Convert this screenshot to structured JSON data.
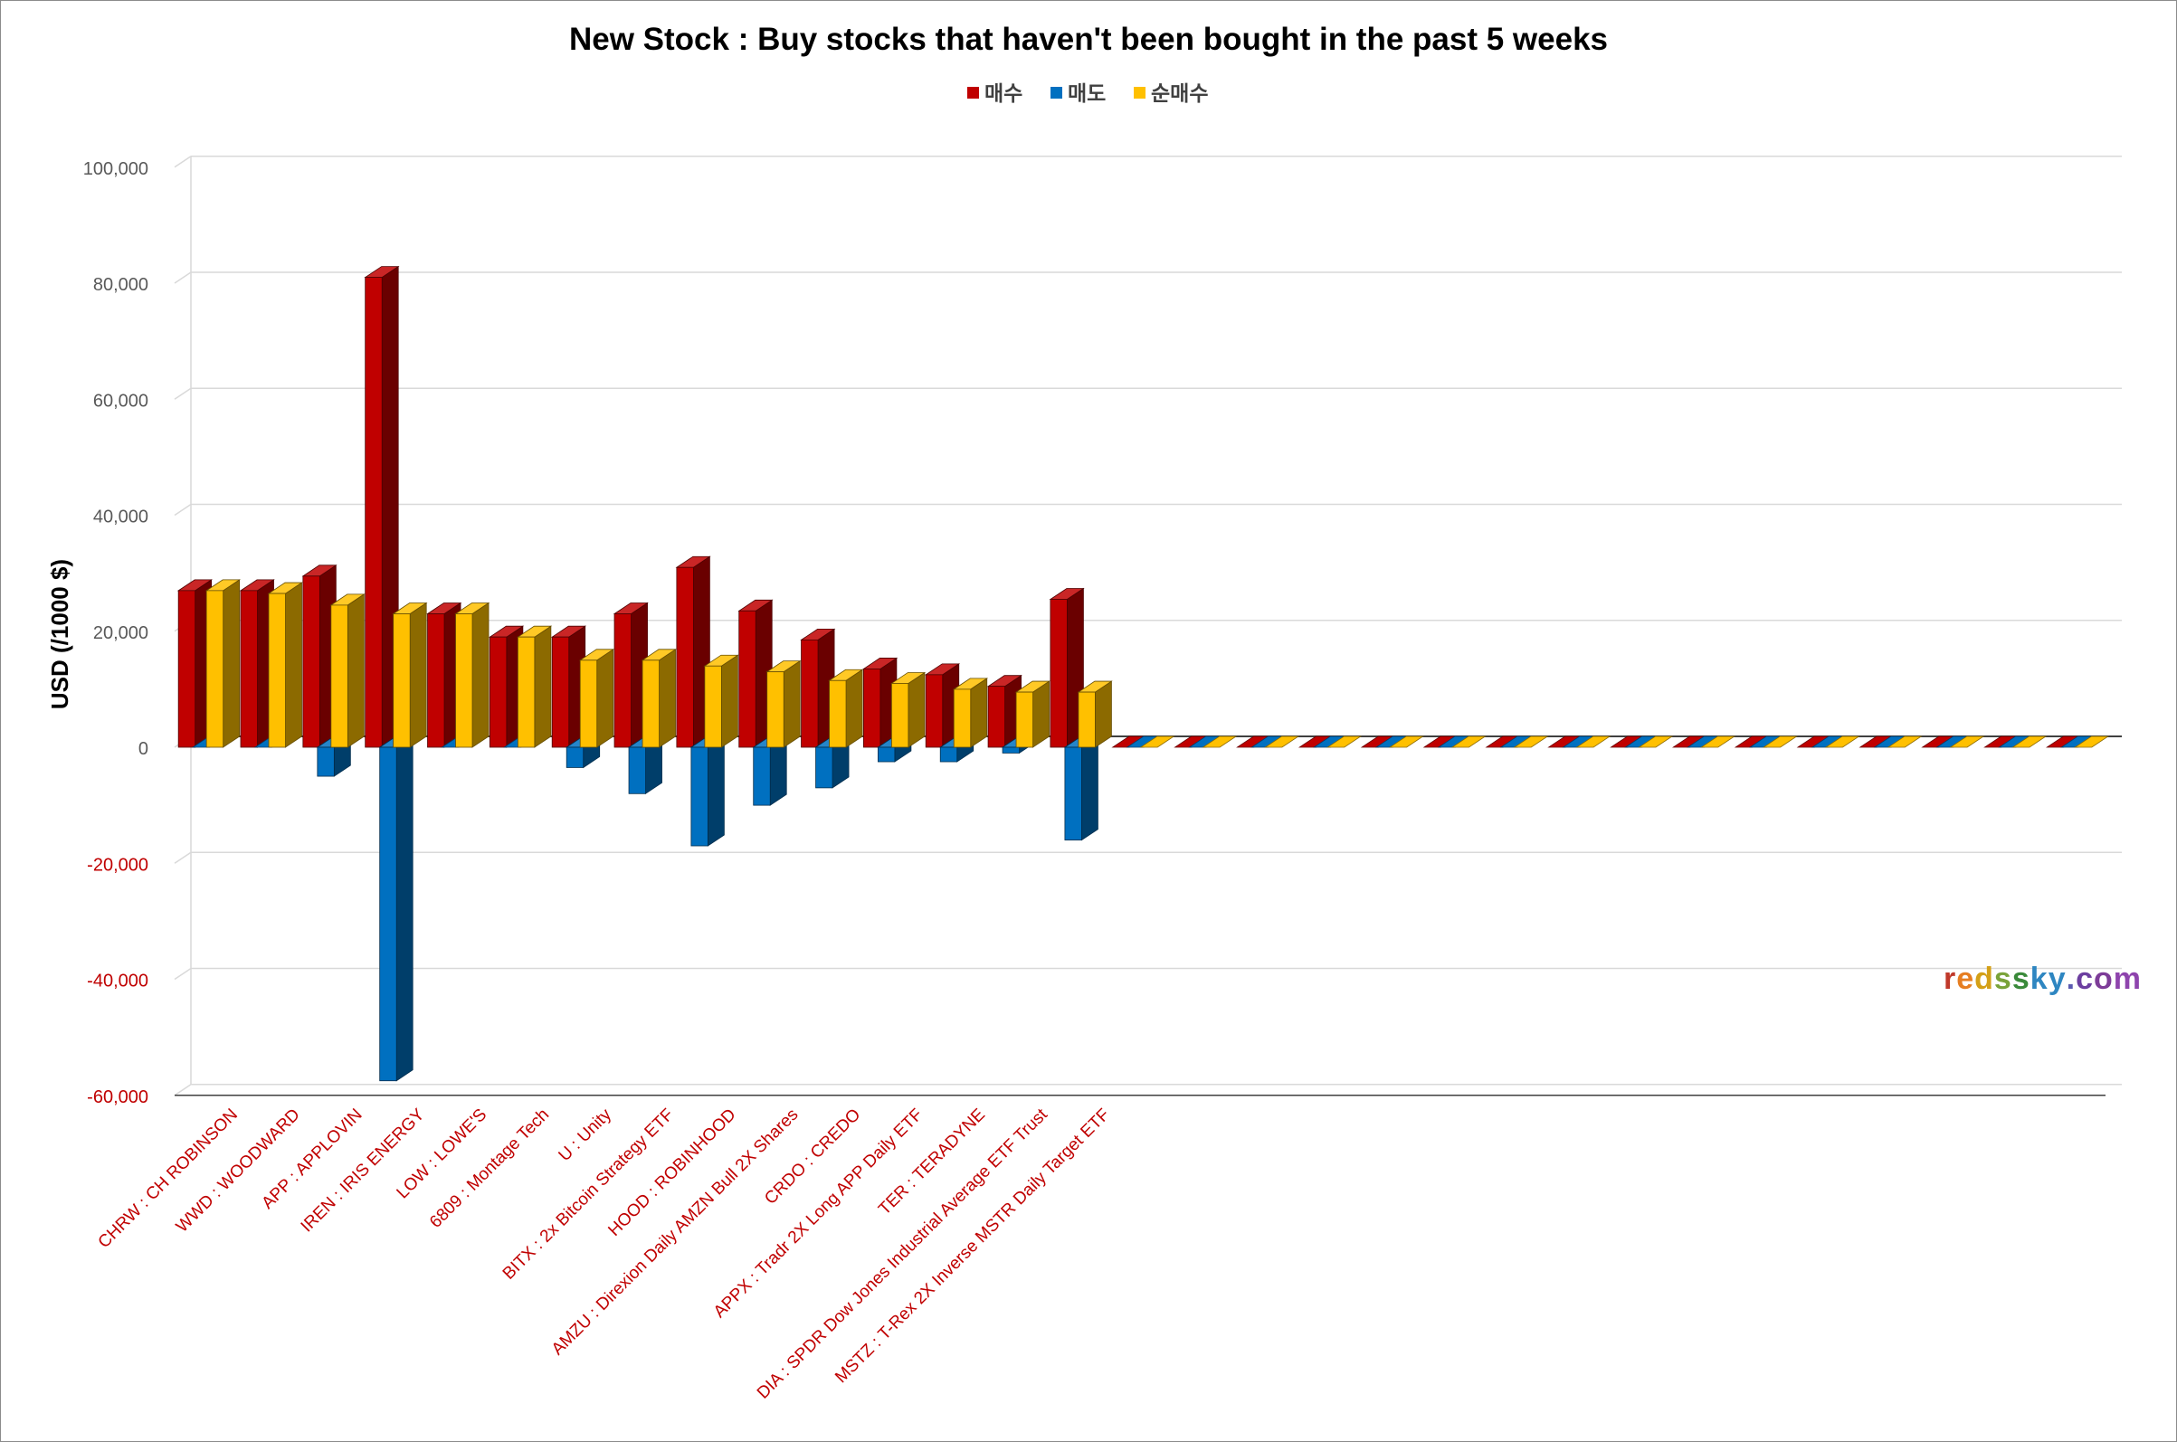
{
  "chart_data": {
    "type": "bar",
    "title": "New Stock : Buy stocks that haven't been bought in the past 5 weeks",
    "ylabel": "USD (/1000 $)",
    "xlabel": "",
    "ylim": [
      -60000,
      100000
    ],
    "yticks": [
      -60000,
      -40000,
      -20000,
      0,
      20000,
      40000,
      60000,
      80000,
      100000
    ],
    "ytick_labels": [
      "-60,000",
      "-40,000",
      "-20,000",
      "0",
      "20,000",
      "40,000",
      "60,000",
      "80,000",
      "100,000"
    ],
    "grid": true,
    "legend_position": "top",
    "categories": [
      "CHRW : CH ROBINSON",
      "WWD : WOODWARD",
      "APP : APPLOVIN",
      "IREN : IRIS ENERGY",
      "LOW : LOWE'S",
      "6809 : Montage Tech",
      "U : Unity",
      "BITX : 2x Bitcoin Strategy ETF",
      "HOOD : ROBINHOOD",
      "AMZU : Direxion Daily AMZN Bull 2X Shares",
      "CRDO : CREDO",
      "APPX : Tradr 2X Long APP Daily ETF",
      "TER : TERADYNE",
      "DIA : SPDR Dow Jones Industrial Average ETF Trust",
      "MSTZ : T-Rex 2X Inverse MSTR Daily Target ETF",
      "",
      "",
      "",
      "",
      "",
      "",
      "",
      "",
      "",
      "",
      "",
      "",
      "",
      "",
      "",
      ""
    ],
    "series": [
      {
        "name": "매수",
        "color": "#c00000",
        "values": [
          27000,
          27000,
          29500,
          81000,
          23000,
          19000,
          19000,
          23000,
          31000,
          23500,
          18500,
          13500,
          12500,
          10500,
          25500,
          0,
          0,
          0,
          0,
          0,
          0,
          0,
          0,
          0,
          0,
          0,
          0,
          0,
          0,
          0,
          0
        ]
      },
      {
        "name": "매도",
        "color": "#0070c0",
        "values": [
          0,
          0,
          -5000,
          -57500,
          0,
          0,
          -3500,
          -8000,
          -17000,
          -10000,
          -7000,
          -2500,
          -2500,
          -1000,
          -16000,
          0,
          0,
          0,
          0,
          0,
          0,
          0,
          0,
          0,
          0,
          0,
          0,
          0,
          0,
          0,
          0
        ]
      },
      {
        "name": "순매수",
        "color": "#ffc000",
        "values": [
          27000,
          26500,
          24500,
          23000,
          23000,
          19000,
          15000,
          15000,
          14000,
          13000,
          11500,
          11000,
          10000,
          9500,
          9500,
          0,
          0,
          0,
          0,
          0,
          0,
          0,
          0,
          0,
          0,
          0,
          0,
          0,
          0,
          0,
          0
        ]
      }
    ]
  },
  "watermark": {
    "text": "redssky.com",
    "colors": [
      "#c0392b",
      "#e67e22",
      "#d4a017",
      "#7aa33a",
      "#3a8a3a",
      "#2e86c1",
      "#2e86c1",
      "#5b5bb0",
      "#6c3fa0",
      "#7d3c98",
      "#8e44ad"
    ]
  }
}
